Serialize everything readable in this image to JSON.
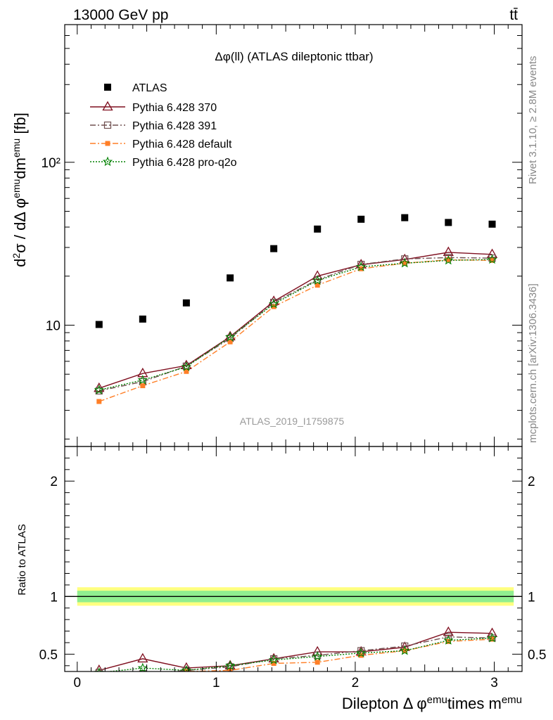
{
  "header": {
    "left": "13000 GeV pp",
    "right": "tt̄"
  },
  "side": {
    "top": "Rivet 3.1.10, ≥ 2.8M events",
    "bottom": "mcplots.cern.ch [arXiv:1306.3436]"
  },
  "watermark": "ATLAS_2019_I1759875",
  "chart_data": [
    {
      "type": "scatter",
      "title": "Δφ(ll) (ATLAS dileptonic ttbar)",
      "ylabel": "d²σ / dΔ φ^emu dm^emu [fb]",
      "xlim": [
        -0.09,
        3.2
      ],
      "ylim": [
        1.8,
        700
      ],
      "yscale": "log",
      "yticks": [
        10,
        100
      ],
      "ytick_labels": [
        "10",
        "10²"
      ],
      "legend_position": "top-left",
      "x": [
        0.157,
        0.471,
        0.785,
        1.1,
        1.414,
        1.728,
        2.042,
        2.356,
        2.67,
        2.985
      ],
      "series": [
        {
          "name": "ATLAS",
          "color": "#000000",
          "marker": "square",
          "line": "none",
          "values": [
            10.1,
            10.9,
            13.7,
            19.5,
            29.5,
            38.9,
            44.7,
            45.7,
            42.7,
            41.7
          ]
        },
        {
          "name": "Pythia 6.428 370",
          "color": "#7f0f1f",
          "marker": "triangle",
          "line": "solid",
          "values": [
            4.1,
            5.05,
            5.65,
            8.5,
            14.0,
            20.0,
            23.5,
            25.3,
            28.0,
            27.2
          ]
        },
        {
          "name": "Pythia 6.428 391",
          "color": "#705050",
          "marker": "open-square",
          "line": "dashdot",
          "values": [
            3.95,
            4.5,
            5.6,
            8.3,
            13.8,
            19.0,
            23.6,
            25.5,
            26.0,
            25.8
          ]
        },
        {
          "name": "Pythia 6.428 default",
          "color": "#ff7f27",
          "marker": "filled-square",
          "line": "dashdot",
          "values": [
            3.4,
            4.25,
            5.2,
            7.9,
            13.0,
            17.6,
            22.2,
            24.0,
            25.2,
            25.0
          ]
        },
        {
          "name": "Pythia 6.428 pro-q2o",
          "color": "#008000",
          "marker": "star",
          "line": "dotted",
          "values": [
            4.0,
            4.6,
            5.55,
            8.45,
            13.5,
            18.8,
            22.8,
            24.0,
            25.0,
            25.3
          ]
        }
      ]
    },
    {
      "type": "line",
      "xlabel": "Dilepton Δ φ^emu times m^emu",
      "ylabel": "Ratio to ATLAS",
      "xlim": [
        -0.09,
        3.2
      ],
      "ylim": [
        0.35,
        2.3
      ],
      "xticks": [
        0,
        1,
        2,
        3
      ],
      "yticks": [
        0.5,
        1,
        2
      ],
      "x": [
        0.157,
        0.471,
        0.785,
        1.1,
        1.414,
        1.728,
        2.042,
        2.356,
        2.67,
        2.985
      ],
      "band_inner": 0.05,
      "band_outer": 0.08,
      "series": [
        {
          "name": "Pythia 6.428 370",
          "values": [
            0.36,
            0.46,
            0.38,
            0.4,
            0.46,
            0.52,
            0.52,
            0.56,
            0.69,
            0.68
          ]
        },
        {
          "name": "Pythia 6.428 391",
          "values": [
            0.34,
            0.33,
            0.36,
            0.39,
            0.46,
            0.49,
            0.53,
            0.57,
            0.65,
            0.64
          ]
        },
        {
          "name": "Pythia 6.428 default",
          "values": [
            0.32,
            0.32,
            0.35,
            0.36,
            0.42,
            0.43,
            0.49,
            0.53,
            0.61,
            0.63
          ]
        },
        {
          "name": "Pythia 6.428 pro-q2o",
          "values": [
            0.34,
            0.38,
            0.36,
            0.4,
            0.45,
            0.48,
            0.51,
            0.53,
            0.62,
            0.64
          ]
        }
      ]
    }
  ]
}
